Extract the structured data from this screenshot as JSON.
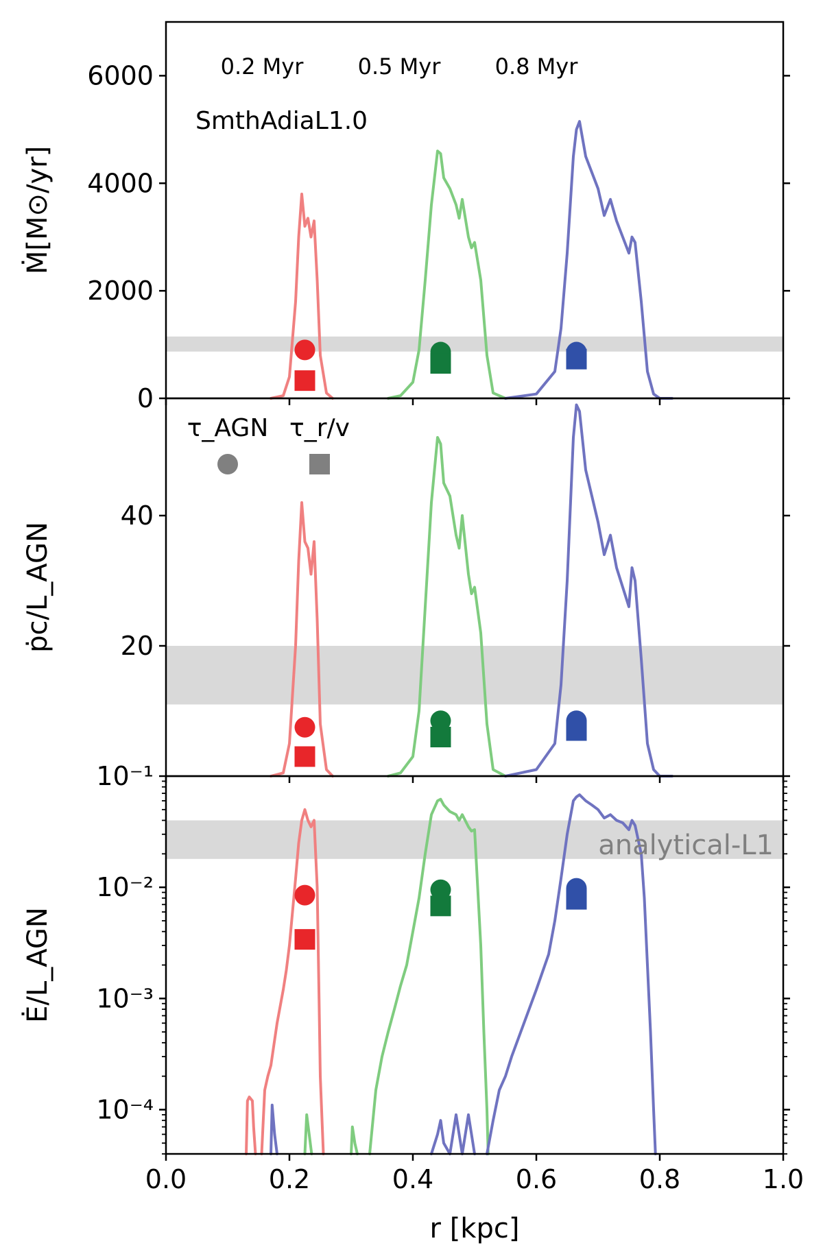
{
  "chart_data": [
    {
      "type": "line",
      "panel": "top",
      "ylabel": "Ṁ[M⊙/yr]",
      "yticks": [
        "0",
        "2000",
        "4000",
        "6000"
      ],
      "ylim": [
        0,
        7000
      ],
      "xlim": [
        0.0,
        1.0
      ],
      "run_label": "SmthAdiaL1.0",
      "time_labels": [
        "0.2 Myr",
        "0.5 Myr",
        "0.8 Myr"
      ],
      "band": [
        870,
        1150
      ],
      "band_color": "#d9d9d9",
      "series": [
        {
          "color": "#f08080",
          "x": [
            0.17,
            0.19,
            0.2,
            0.21,
            0.215,
            0.22,
            0.225,
            0.23,
            0.235,
            0.24,
            0.245,
            0.25,
            0.26,
            0.27
          ],
          "y": [
            0,
            50,
            400,
            1800,
            3000,
            3800,
            3200,
            3350,
            3000,
            3300,
            2200,
            800,
            100,
            0
          ]
        },
        {
          "color": "#7fcc7f",
          "x": [
            0.36,
            0.38,
            0.4,
            0.41,
            0.42,
            0.43,
            0.44,
            0.445,
            0.45,
            0.46,
            0.47,
            0.475,
            0.48,
            0.49,
            0.495,
            0.5,
            0.51,
            0.52,
            0.53,
            0.55
          ],
          "y": [
            0,
            50,
            300,
            900,
            2200,
            3600,
            4600,
            4550,
            4100,
            3900,
            3600,
            3350,
            3700,
            3000,
            2800,
            2900,
            2200,
            800,
            100,
            0
          ]
        },
        {
          "color": "#6f73c0",
          "x": [
            0.55,
            0.6,
            0.63,
            0.64,
            0.65,
            0.66,
            0.665,
            0.67,
            0.68,
            0.69,
            0.7,
            0.71,
            0.72,
            0.73,
            0.74,
            0.75,
            0.755,
            0.76,
            0.77,
            0.78,
            0.79,
            0.8,
            0.82
          ],
          "y": [
            0,
            80,
            500,
            1300,
            2700,
            4500,
            5000,
            5150,
            4500,
            4200,
            3900,
            3400,
            3700,
            3300,
            3000,
            2700,
            3000,
            2900,
            1800,
            500,
            80,
            0,
            0
          ]
        }
      ],
      "markers": [
        {
          "shape": "circle",
          "x": 0.225,
          "y": 900,
          "color": "#e8262a"
        },
        {
          "shape": "square",
          "x": 0.225,
          "y": 330,
          "color": "#e8262a"
        },
        {
          "shape": "circle",
          "x": 0.445,
          "y": 860,
          "color": "#137a3c"
        },
        {
          "shape": "square",
          "x": 0.445,
          "y": 650,
          "color": "#137a3c"
        },
        {
          "shape": "circle",
          "x": 0.665,
          "y": 860,
          "color": "#3050a8"
        },
        {
          "shape": "square",
          "x": 0.665,
          "y": 730,
          "color": "#3050a8"
        }
      ]
    },
    {
      "type": "line",
      "panel": "middle",
      "ylabel": "ṗc/L_AGN",
      "yticks": [
        "20",
        "40"
      ],
      "ylim": [
        0,
        58
      ],
      "xlim": [
        0.0,
        1.0
      ],
      "legend": [
        {
          "label": "τ_AGN",
          "shape": "circle",
          "color": "#808080"
        },
        {
          "label": "τ_r/v",
          "shape": "square",
          "color": "#808080"
        }
      ],
      "band": [
        11,
        20
      ],
      "band_color": "#d9d9d9",
      "series": [
        {
          "color": "#f08080",
          "x": [
            0.17,
            0.19,
            0.2,
            0.21,
            0.215,
            0.22,
            0.225,
            0.23,
            0.235,
            0.24,
            0.245,
            0.25,
            0.26,
            0.27
          ],
          "y": [
            0,
            0.5,
            5,
            20,
            33,
            42,
            36,
            35,
            31,
            36,
            24,
            8,
            1,
            0
          ]
        },
        {
          "color": "#7fcc7f",
          "x": [
            0.36,
            0.38,
            0.4,
            0.41,
            0.42,
            0.43,
            0.44,
            0.445,
            0.45,
            0.46,
            0.47,
            0.475,
            0.48,
            0.49,
            0.495,
            0.5,
            0.51,
            0.52,
            0.53,
            0.55
          ],
          "y": [
            0,
            0.5,
            3,
            10,
            26,
            42,
            52,
            51,
            45,
            43,
            37,
            35,
            40,
            31,
            28,
            29,
            22,
            8,
            1,
            0
          ]
        },
        {
          "color": "#6f73c0",
          "x": [
            0.55,
            0.6,
            0.63,
            0.64,
            0.65,
            0.66,
            0.665,
            0.67,
            0.68,
            0.69,
            0.7,
            0.71,
            0.72,
            0.73,
            0.74,
            0.75,
            0.755,
            0.76,
            0.77,
            0.78,
            0.79,
            0.8,
            0.82
          ],
          "y": [
            0,
            1,
            5,
            14,
            30,
            52,
            57,
            56,
            47,
            43,
            39,
            34,
            37,
            32,
            29,
            26,
            32,
            30,
            18,
            5,
            1,
            0,
            0
          ]
        }
      ],
      "markers": [
        {
          "shape": "circle",
          "x": 0.225,
          "y": 7.5,
          "color": "#e8262a"
        },
        {
          "shape": "square",
          "x": 0.225,
          "y": 3,
          "color": "#e8262a"
        },
        {
          "shape": "circle",
          "x": 0.445,
          "y": 8.5,
          "color": "#137a3c"
        },
        {
          "shape": "square",
          "x": 0.445,
          "y": 6,
          "color": "#137a3c"
        },
        {
          "shape": "circle",
          "x": 0.665,
          "y": 8.5,
          "color": "#3050a8"
        },
        {
          "shape": "square",
          "x": 0.665,
          "y": 7,
          "color": "#3050a8"
        }
      ]
    },
    {
      "type": "line",
      "panel": "bottom",
      "ylabel": "Ė/L_AGN",
      "yscale": "log",
      "yticks": [
        "10⁻⁴",
        "10⁻³",
        "10⁻²",
        "10⁻¹"
      ],
      "ylim": [
        4e-05,
        0.1
      ],
      "xlim": [
        0.0,
        1.0
      ],
      "xticks": [
        "0.0",
        "0.2",
        "0.4",
        "0.6",
        "0.8",
        "1.0"
      ],
      "xlabel": "r [kpc]",
      "band": [
        0.018,
        0.04
      ],
      "band_color": "#d9d9d9",
      "band_label": "analytical-L1",
      "series": [
        {
          "color": "#f08080",
          "segments": [
            {
              "x": [
                0.13,
                0.132,
                0.135,
                0.14,
                0.142,
                0.145
              ],
              "y": [
                4e-05,
                0.00012,
                0.00013,
                0.00012,
                7e-05,
                4e-05
              ]
            },
            {
              "x": [
                0.155,
                0.16,
                0.165,
                0.17,
                0.18,
                0.19,
                0.195,
                0.2,
                0.205,
                0.21,
                0.215,
                0.22,
                0.225,
                0.23,
                0.235,
                0.24,
                0.245,
                0.248,
                0.25,
                0.255
              ],
              "y": [
                4e-05,
                0.00015,
                0.0002,
                0.00025,
                0.0006,
                0.0012,
                0.0018,
                0.003,
                0.006,
                0.012,
                0.025,
                0.04,
                0.05,
                0.04,
                0.035,
                0.04,
                0.01,
                0.001,
                0.0002,
                4e-05
              ]
            }
          ]
        },
        {
          "color": "#7fcc7f",
          "segments": [
            {
              "x": [
                0.225,
                0.228,
                0.232,
                0.236
              ],
              "y": [
                4e-05,
                9e-05,
                6e-05,
                4e-05
              ]
            },
            {
              "x": [
                0.3,
                0.302,
                0.306,
                0.31
              ],
              "y": [
                4e-05,
                7e-05,
                5e-05,
                4e-05
              ]
            },
            {
              "x": [
                0.33,
                0.34,
                0.35,
                0.36,
                0.37,
                0.38,
                0.39,
                0.4,
                0.41,
                0.42,
                0.43,
                0.44,
                0.445,
                0.45,
                0.46,
                0.47,
                0.475,
                0.48,
                0.49,
                0.495,
                0.5,
                0.51,
                0.515,
                0.52,
                0.522
              ],
              "y": [
                4e-05,
                0.00015,
                0.0003,
                0.0005,
                0.0008,
                0.0013,
                0.002,
                0.004,
                0.008,
                0.02,
                0.045,
                0.06,
                0.062,
                0.055,
                0.048,
                0.045,
                0.04,
                0.045,
                0.035,
                0.032,
                0.033,
                0.003,
                0.0005,
                0.0001,
                4e-05
              ]
            }
          ]
        },
        {
          "color": "#6f73c0",
          "segments": [
            {
              "x": [
                0.17,
                0.172,
                0.176,
                0.18
              ],
              "y": [
                4e-05,
                0.00011,
                6e-05,
                4e-05
              ]
            },
            {
              "x": [
                0.43,
                0.44,
                0.445,
                0.45,
                0.46,
                0.47,
                0.48,
                0.49,
                0.5
              ],
              "y": [
                4e-05,
                6e-05,
                8e-05,
                5e-05,
                4e-05,
                9e-05,
                4e-05,
                9e-05,
                4e-05
              ]
            },
            {
              "x": [
                0.52,
                0.53,
                0.54,
                0.55,
                0.56,
                0.58,
                0.6,
                0.62,
                0.63,
                0.64,
                0.65,
                0.66,
                0.665,
                0.67,
                0.68,
                0.69,
                0.7,
                0.71,
                0.72,
                0.73,
                0.74,
                0.75,
                0.755,
                0.76,
                0.77,
                0.775,
                0.78,
                0.785,
                0.79,
                0.793
              ],
              "y": [
                4e-05,
                8e-05,
                0.00015,
                0.0002,
                0.0003,
                0.0006,
                0.0012,
                0.0025,
                0.005,
                0.012,
                0.03,
                0.06,
                0.065,
                0.068,
                0.06,
                0.055,
                0.05,
                0.042,
                0.045,
                0.04,
                0.038,
                0.033,
                0.04,
                0.036,
                0.02,
                0.008,
                0.002,
                0.0005,
                0.0001,
                4e-05
              ]
            }
          ]
        }
      ],
      "markers": [
        {
          "shape": "circle",
          "x": 0.225,
          "y": 0.0085,
          "color": "#e8262a"
        },
        {
          "shape": "square",
          "x": 0.225,
          "y": 0.0034,
          "color": "#e8262a"
        },
        {
          "shape": "circle",
          "x": 0.445,
          "y": 0.0095,
          "color": "#137a3c"
        },
        {
          "shape": "square",
          "x": 0.445,
          "y": 0.0068,
          "color": "#137a3c"
        },
        {
          "shape": "circle",
          "x": 0.665,
          "y": 0.0098,
          "color": "#3050a8"
        },
        {
          "shape": "square",
          "x": 0.665,
          "y": 0.0078,
          "color": "#3050a8"
        }
      ]
    }
  ]
}
